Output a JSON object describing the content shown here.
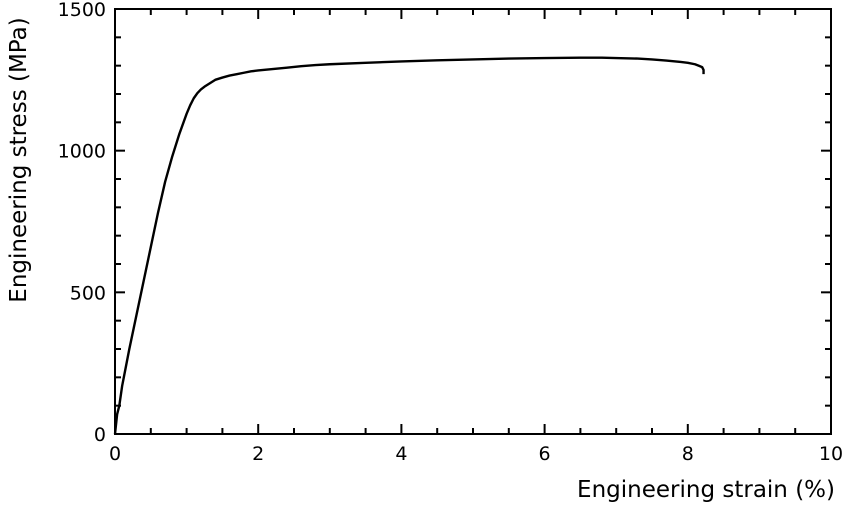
{
  "chart_data": {
    "type": "line",
    "title": "",
    "xlabel": "Engineering strain (%)",
    "ylabel": "Engineering stress (MPa)",
    "xlim": [
      0,
      10
    ],
    "ylim": [
      0,
      1500
    ],
    "x_ticks": [
      0,
      2,
      4,
      6,
      8,
      10
    ],
    "x_tick_labels": [
      "0",
      "2",
      "4",
      "6",
      "8",
      "10"
    ],
    "x_minor_step": 0.5,
    "y_ticks": [
      0,
      500,
      1000,
      1500
    ],
    "y_tick_labels": [
      "0",
      "500",
      "1000",
      "1500"
    ],
    "y_minor_step": 100,
    "grid": false,
    "legend": "none",
    "line_color": "#000000",
    "series": [
      {
        "x": [
          0.0,
          0.03,
          0.06,
          0.1,
          0.2,
          0.3,
          0.4,
          0.5,
          0.6,
          0.7,
          0.8,
          0.9,
          1.0,
          1.05,
          1.1,
          1.15,
          1.2,
          1.25,
          1.3,
          1.35,
          1.4,
          1.5,
          1.6,
          1.7,
          1.8,
          1.9,
          2.0,
          2.2,
          2.4,
          2.6,
          2.8,
          3.0,
          3.5,
          4.0,
          4.5,
          5.0,
          5.5,
          6.0,
          6.5,
          6.8,
          7.0,
          7.3,
          7.5,
          7.7,
          7.9,
          8.0,
          8.1,
          8.15,
          8.2,
          8.22,
          8.22
        ],
        "y": [
          0,
          70,
          100,
          170,
          300,
          420,
          540,
          660,
          780,
          890,
          980,
          1060,
          1130,
          1160,
          1185,
          1203,
          1216,
          1226,
          1234,
          1242,
          1250,
          1258,
          1265,
          1270,
          1275,
          1280,
          1283,
          1288,
          1293,
          1298,
          1302,
          1305,
          1310,
          1315,
          1319,
          1322,
          1325,
          1327,
          1328,
          1328,
          1327,
          1325,
          1322,
          1318,
          1313,
          1310,
          1305,
          1300,
          1295,
          1285,
          1270
        ]
      }
    ]
  }
}
